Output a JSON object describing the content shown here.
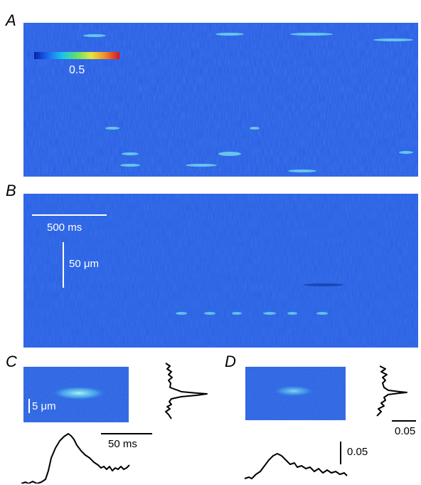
{
  "panels": {
    "a": {
      "letter": "A"
    },
    "b": {
      "letter": "B"
    },
    "c": {
      "letter": "C"
    },
    "d": {
      "letter": "D"
    }
  },
  "colorbar": {
    "label": "0.5",
    "colors": [
      "#0b1fb0",
      "#1d6cf0",
      "#19c4e8",
      "#62e06a",
      "#e8e63a",
      "#f08a2a",
      "#d9141c"
    ]
  },
  "scalebars": {
    "time_large": "500 ms",
    "space_large": "50 μm",
    "space_small": "5 μm",
    "time_small": "50 ms",
    "amp_d": "0.05",
    "amp_right": "0.05"
  },
  "image_colors": {
    "background": "#2b62e6",
    "spark": "#7fe4f0"
  }
}
